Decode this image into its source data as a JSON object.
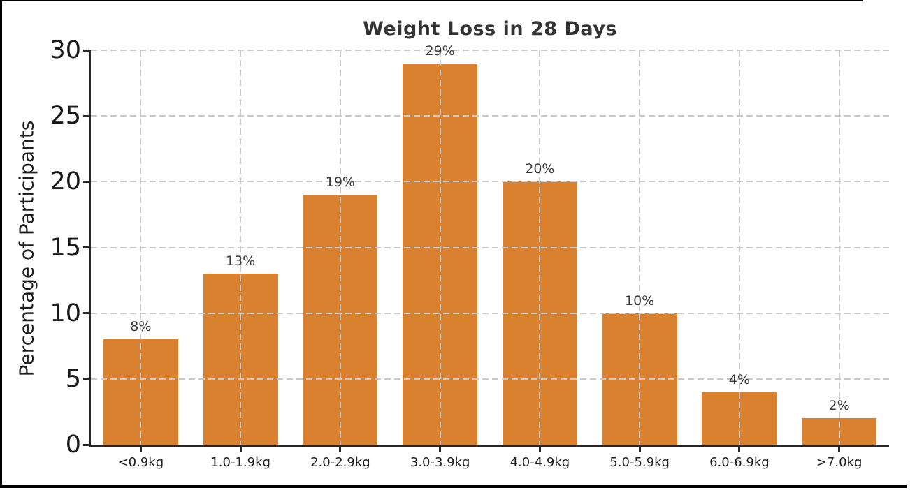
{
  "chart_data": {
    "type": "bar",
    "title": "Weight Loss in 28 Days",
    "xlabel": "",
    "ylabel": "Percentage of Participants",
    "categories": [
      "<0.9kg",
      "1.0-1.9kg",
      "2.0-2.9kg",
      "3.0-3.9kg",
      "4.0-4.9kg",
      "5.0-5.9kg",
      "6.0-6.9kg",
      ">7.0kg"
    ],
    "values": [
      8,
      13,
      19,
      29,
      20,
      10,
      4,
      2
    ],
    "bar_labels": [
      "8%",
      "13%",
      "19%",
      "29%",
      "20%",
      "10%",
      "4%",
      "2%"
    ],
    "ylim": [
      0,
      30
    ],
    "yticks": [
      0,
      5,
      10,
      15,
      20,
      25,
      30
    ],
    "grid": "both, dashed, drawn above bars",
    "legend_position": "none",
    "colors": {
      "bar": "#d9812f",
      "grid": "#c9c9c9",
      "axis": "#262626",
      "title_text": "#333333",
      "tick_text": "#1a1a1a",
      "annotation_text": "#3a3a3a",
      "frame": "#000000",
      "background": "#ffffff"
    }
  }
}
